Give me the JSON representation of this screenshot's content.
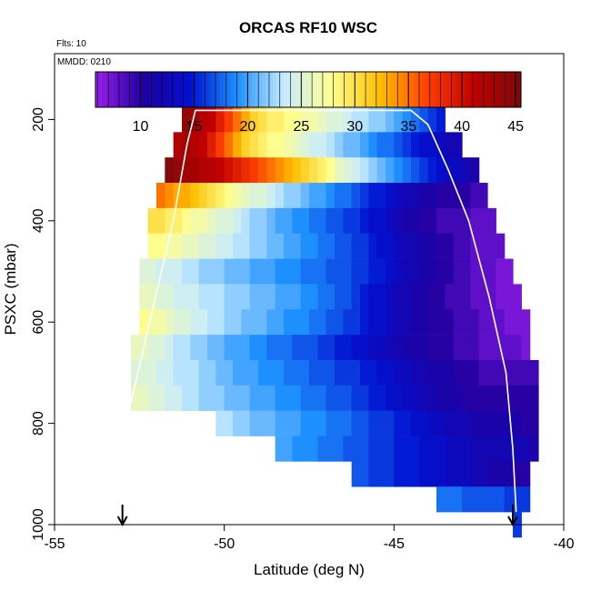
{
  "chart_data": {
    "type": "heatmap",
    "title": "ORCAS RF10 WSC",
    "subtitle_flights": "Flts: 10",
    "subtitle_date": "MMDD: 0210",
    "xlabel": "Latitude (deg N)",
    "ylabel": "PSXC (mbar)",
    "xlim": [
      -55,
      -40
    ],
    "ylim": [
      1000,
      70
    ],
    "x_ticks": [
      -55,
      -50,
      -45,
      -40
    ],
    "x_tick_labels": [
      "-55",
      "-50",
      "-45",
      "-40"
    ],
    "y_ticks": [
      200,
      400,
      600,
      800,
      1000
    ],
    "y_tick_labels": [
      "200",
      "400",
      "600",
      "800",
      "1000"
    ],
    "colorbar": {
      "range": [
        5.8,
        45.5
      ],
      "ticks": [
        10,
        15,
        20,
        25,
        30,
        35,
        40,
        45
      ],
      "tick_labels": [
        "10",
        "15",
        "20",
        "25",
        "30",
        "35",
        "40",
        "45"
      ],
      "colors": [
        "#9a1fee",
        "#2000a0",
        "#0010d0",
        "#1e90ff",
        "#c8ecff",
        "#ffff90",
        "#ffc000",
        "#ff4000",
        "#c00000",
        "#7a0a0a"
      ]
    },
    "cell_size": {
      "dlat": 0.25,
      "dp": 50
    },
    "rows": [
      {
        "p": 200,
        "lat_start": -51.25,
        "values": [
          44,
          43,
          42,
          41,
          39,
          37,
          35,
          33,
          31,
          30,
          29,
          29,
          28,
          28,
          27,
          27,
          26,
          25,
          25,
          24,
          23,
          23,
          22,
          22,
          21,
          20,
          19,
          18,
          17,
          16,
          15
        ]
      },
      {
        "p": 250,
        "lat_start": -51.5,
        "values": [
          42,
          43,
          42,
          41,
          39,
          37,
          35,
          33,
          31,
          30,
          29,
          28,
          28,
          27,
          26,
          25,
          24,
          24,
          23,
          22,
          21,
          21,
          20,
          19,
          18,
          18,
          17,
          16,
          15,
          14,
          14,
          13,
          12,
          12
        ]
      },
      {
        "p": 300,
        "lat_start": -51.75,
        "values": [
          45,
          44,
          43,
          43,
          42,
          42,
          41,
          40,
          39,
          38,
          37,
          36,
          35,
          34,
          33,
          32,
          31,
          30,
          29,
          28,
          26,
          25,
          24,
          23,
          22,
          21,
          20,
          19,
          18,
          17,
          16,
          15,
          14,
          13,
          13,
          12,
          11
        ]
      },
      {
        "p": 350,
        "lat_start": -52.0,
        "values": [
          35,
          34,
          33,
          33,
          32,
          31,
          30,
          29,
          28,
          27,
          26,
          25,
          25,
          24,
          23,
          22,
          22,
          21,
          20,
          20,
          19,
          18,
          18,
          17,
          16,
          15,
          15,
          14,
          13,
          12,
          12,
          11,
          11,
          10,
          10,
          10,
          10,
          9,
          9
        ]
      },
      {
        "p": 400,
        "lat_start": -52.25,
        "values": [
          30,
          30,
          29,
          29,
          28,
          27,
          27,
          26,
          25,
          25,
          24,
          23,
          22,
          22,
          21,
          20,
          20,
          19,
          19,
          18,
          18,
          17,
          17,
          16,
          16,
          15,
          14,
          14,
          13,
          12,
          11,
          11,
          10,
          10,
          9,
          9,
          9,
          9,
          8,
          8,
          8
        ]
      },
      {
        "p": 450,
        "lat_start": -52.25,
        "values": [
          28,
          28,
          27,
          27,
          26,
          26,
          25,
          25,
          24,
          24,
          23,
          23,
          22,
          22,
          21,
          21,
          20,
          20,
          19,
          19,
          18,
          18,
          17,
          17,
          16,
          16,
          15,
          14,
          14,
          13,
          12,
          12,
          11,
          11,
          10,
          10,
          9,
          9,
          8,
          8,
          8,
          8
        ]
      },
      {
        "p": 500,
        "lat_start": -52.5,
        "values": [
          25,
          25,
          24,
          24,
          24,
          23,
          23,
          22,
          22,
          22,
          21,
          21,
          21,
          20,
          20,
          20,
          19,
          19,
          19,
          18,
          18,
          18,
          17,
          17,
          17,
          16,
          16,
          15,
          15,
          14,
          13,
          12,
          12,
          11,
          11,
          10,
          10,
          9,
          9,
          8,
          8,
          8,
          7,
          7
        ]
      },
      {
        "p": 550,
        "lat_start": -52.5,
        "values": [
          26,
          26,
          25,
          25,
          24,
          24,
          24,
          23,
          23,
          23,
          22,
          22,
          22,
          21,
          21,
          21,
          20,
          20,
          20,
          19,
          19,
          18,
          18,
          17,
          17,
          16,
          15,
          14,
          14,
          13,
          12,
          12,
          11,
          11,
          10,
          10,
          9,
          9,
          9,
          8,
          8,
          8,
          7,
          7,
          7
        ]
      },
      {
        "p": 600,
        "lat_start": -52.5,
        "values": [
          28,
          27,
          27,
          26,
          25,
          25,
          24,
          24,
          23,
          23,
          22,
          22,
          21,
          21,
          21,
          20,
          20,
          19,
          19,
          19,
          18,
          18,
          17,
          17,
          16,
          16,
          15,
          14,
          14,
          13,
          12,
          12,
          11,
          11,
          10,
          10,
          10,
          9,
          9,
          9,
          8,
          8,
          8,
          7,
          7,
          7
        ]
      },
      {
        "p": 650,
        "lat_start": -52.75,
        "values": [
          26,
          26,
          25,
          25,
          24,
          23,
          23,
          22,
          22,
          21,
          21,
          20,
          20,
          20,
          19,
          19,
          18,
          18,
          18,
          17,
          17,
          17,
          16,
          16,
          15,
          15,
          14,
          14,
          13,
          13,
          12,
          12,
          11,
          11,
          11,
          10,
          10,
          10,
          9,
          9,
          9,
          8,
          8,
          8,
          8,
          8,
          7
        ]
      },
      {
        "p": 700,
        "lat_start": -52.75,
        "values": [
          25,
          25,
          25,
          24,
          24,
          23,
          23,
          23,
          22,
          22,
          21,
          21,
          20,
          20,
          20,
          19,
          19,
          19,
          18,
          18,
          18,
          17,
          17,
          17,
          16,
          16,
          16,
          15,
          15,
          14,
          14,
          13,
          13,
          12,
          12,
          11,
          11,
          11,
          10,
          10,
          10,
          9,
          9,
          9,
          9,
          9,
          9,
          9
        ]
      },
      {
        "p": 750,
        "lat_start": -52.75,
        "values": [
          26,
          26,
          25,
          25,
          24,
          24,
          23,
          23,
          22,
          22,
          22,
          21,
          21,
          21,
          20,
          20,
          20,
          19,
          19,
          19,
          18,
          18,
          18,
          17,
          17,
          17,
          16,
          16,
          15,
          15,
          14,
          14,
          13,
          13,
          12,
          12,
          11,
          11,
          11,
          10,
          10,
          10,
          10,
          10,
          10,
          10,
          10,
          10
        ]
      },
      {
        "p": 800,
        "lat_start": -50.25,
        "values": [
          23,
          23,
          22,
          22,
          21,
          21,
          21,
          20,
          20,
          20,
          19,
          19,
          19,
          18,
          18,
          18,
          17,
          17,
          16,
          16,
          16,
          15,
          15,
          14,
          14,
          13,
          13,
          12,
          12,
          12,
          11,
          11,
          11,
          11,
          11,
          11,
          10,
          10
        ]
      },
      {
        "p": 850,
        "lat_start": -48.5,
        "values": [
          20,
          20,
          19,
          19,
          19,
          18,
          18,
          18,
          17,
          17,
          17,
          16,
          16,
          16,
          15,
          15,
          15,
          14,
          14,
          14,
          13,
          13,
          13,
          12,
          12,
          12,
          12,
          12,
          12,
          12,
          11
        ]
      },
      {
        "p": 900,
        "lat_start": -46.25,
        "values": [
          17,
          17,
          16,
          16,
          16,
          15,
          15,
          15,
          14,
          14,
          14,
          13,
          13,
          13,
          12,
          12,
          11,
          11,
          11,
          10,
          10
        ]
      },
      {
        "p": 950,
        "lat_start": -43.75,
        "values": [
          18,
          18,
          18,
          17,
          17,
          17,
          17,
          17,
          16,
          16,
          16
        ]
      },
      {
        "p": 1000,
        "lat_start": -41.5,
        "values": [
          16
        ]
      }
    ],
    "flight_track": [
      [
        -52.75,
        760
      ],
      [
        -52.2,
        600
      ],
      [
        -51.5,
        400
      ],
      [
        -51.1,
        250
      ],
      [
        -50.85,
        182
      ],
      [
        -44.5,
        182
      ],
      [
        -44.0,
        210
      ],
      [
        -43.4,
        300
      ],
      [
        -42.8,
        400
      ],
      [
        -42.2,
        550
      ],
      [
        -41.7,
        700
      ],
      [
        -41.5,
        850
      ],
      [
        -41.4,
        975
      ]
    ],
    "markers": [
      {
        "name": "start",
        "lat": -53.0
      },
      {
        "name": "end",
        "lat": -41.5
      }
    ]
  }
}
